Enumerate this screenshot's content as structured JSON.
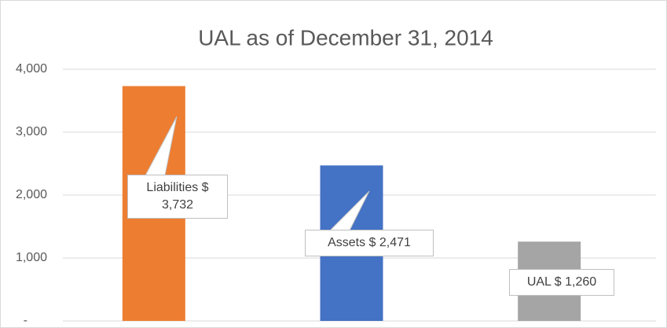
{
  "chart_data": {
    "type": "bar",
    "title": "UAL as of December 31, 2014",
    "values": [
      3732,
      2471,
      1260
    ],
    "value_labels": [
      "Liabilities $ 3,732",
      "Assets $ 2,471",
      "UAL $ 1,260"
    ],
    "colors": [
      "#ed7d31",
      "#4472c4",
      "#a5a5a5"
    ],
    "ylim": [
      0,
      4000
    ],
    "yticks": [
      {
        "value": 0,
        "label": "-"
      },
      {
        "value": 1000,
        "label": "1,000"
      },
      {
        "value": 2000,
        "label": "2,000"
      },
      {
        "value": 3000,
        "label": "3,000"
      },
      {
        "value": 4000,
        "label": "4,000"
      }
    ],
    "grid": true
  }
}
